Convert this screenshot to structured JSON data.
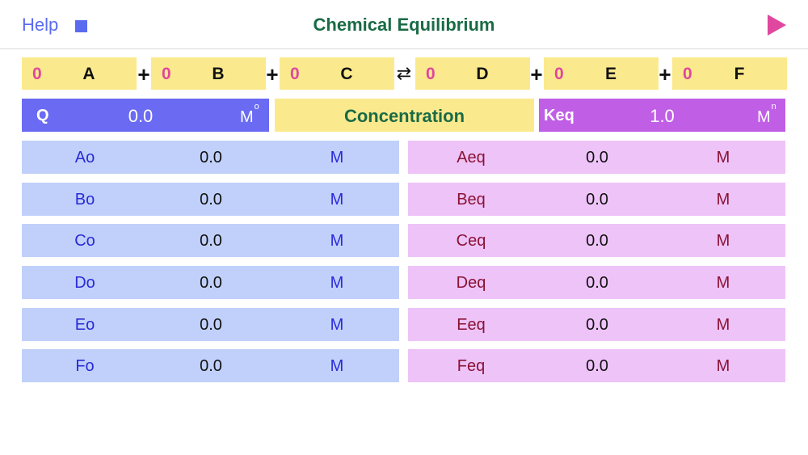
{
  "header": {
    "help_label": "Help",
    "title": "Chemical Equilibrium"
  },
  "equation": {
    "species": [
      {
        "coef": "0",
        "symbol": "A"
      },
      {
        "coef": "0",
        "symbol": "B"
      },
      {
        "coef": "0",
        "symbol": "C"
      },
      {
        "coef": "0",
        "symbol": "D"
      },
      {
        "coef": "0",
        "symbol": "E"
      },
      {
        "coef": "0",
        "symbol": "F"
      }
    ],
    "plus": "+",
    "arrow": "⇄"
  },
  "summary": {
    "q_label": "Q",
    "q_value": "0.0",
    "q_unit": "M",
    "q_exp": "o",
    "conc_label": "Concentration",
    "keq_label": "Keq",
    "keq_value": "1.0",
    "keq_unit": "M",
    "keq_exp": "n"
  },
  "initial": [
    {
      "name": "Ao",
      "value": "0.0",
      "unit": "M"
    },
    {
      "name": "Bo",
      "value": "0.0",
      "unit": "M"
    },
    {
      "name": "Co",
      "value": "0.0",
      "unit": "M"
    },
    {
      "name": "Do",
      "value": "0.0",
      "unit": "M"
    },
    {
      "name": "Eo",
      "value": "0.0",
      "unit": "M"
    },
    {
      "name": "Fo",
      "value": "0.0",
      "unit": "M"
    }
  ],
  "equilibrium": [
    {
      "name": "Aeq",
      "value": "0.0",
      "unit": "M"
    },
    {
      "name": "Beq",
      "value": "0.0",
      "unit": "M"
    },
    {
      "name": "Ceq",
      "value": "0.0",
      "unit": "M"
    },
    {
      "name": "Deq",
      "value": "0.0",
      "unit": "M"
    },
    {
      "name": "Eeq",
      "value": "0.0",
      "unit": "M"
    },
    {
      "name": "Feq",
      "value": "0.0",
      "unit": "M"
    }
  ],
  "colors": {
    "accent": "#5b6bf0",
    "play": "#e0479e",
    "title": "#1a6b45"
  }
}
